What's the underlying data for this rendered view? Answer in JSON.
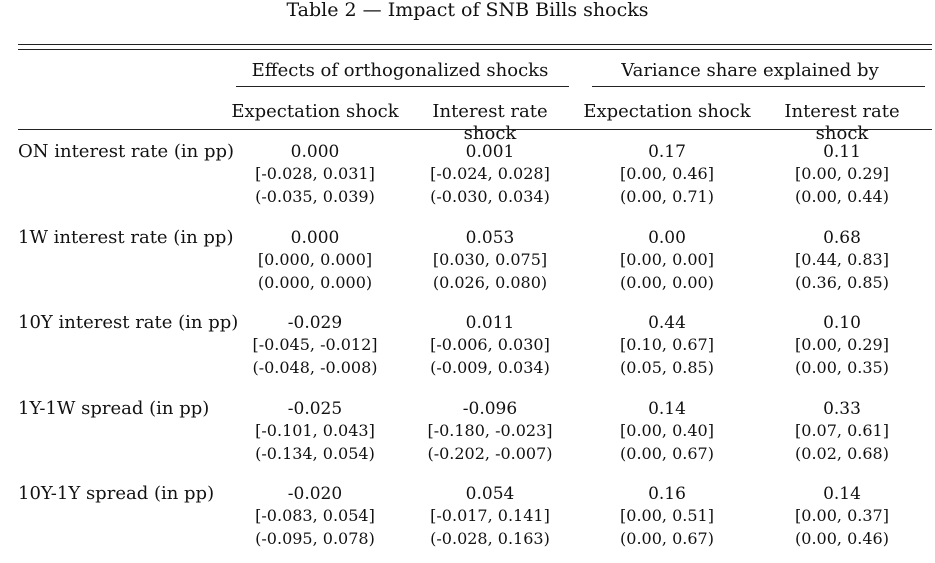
{
  "caption": "Table  2 — Impact of SNB Bills shocks",
  "group_headers": [
    "Effects of orthogonalized shocks",
    "Variance share explained by"
  ],
  "sub_headers": [
    "Expectation shock",
    "Interest rate shock",
    "Expectation shock",
    "Interest rate shock"
  ],
  "rows": [
    {
      "label": "ON interest rate (in pp)",
      "cells": [
        {
          "point": "0.000",
          "ci1": "[-0.028, 0.031]",
          "ci2": "(-0.035, 0.039)"
        },
        {
          "point": "0.001",
          "ci1": "[-0.024, 0.028]",
          "ci2": "(-0.030, 0.034)"
        },
        {
          "point": "0.17",
          "ci1": "[0.00, 0.46]",
          "ci2": "(0.00, 0.71)"
        },
        {
          "point": "0.11",
          "ci1": "[0.00, 0.29]",
          "ci2": "(0.00, 0.44)"
        }
      ]
    },
    {
      "label": "1W interest rate (in pp)",
      "cells": [
        {
          "point": "0.000",
          "ci1": "[0.000, 0.000]",
          "ci2": "(0.000, 0.000)"
        },
        {
          "point": "0.053",
          "ci1": "[0.030, 0.075]",
          "ci2": "(0.026, 0.080)"
        },
        {
          "point": "0.00",
          "ci1": "[0.00, 0.00]",
          "ci2": "(0.00, 0.00)"
        },
        {
          "point": "0.68",
          "ci1": "[0.44, 0.83]",
          "ci2": "(0.36, 0.85)"
        }
      ]
    },
    {
      "label": "10Y interest rate (in pp)",
      "cells": [
        {
          "point": "-0.029",
          "ci1": "[-0.045, -0.012]",
          "ci2": "(-0.048, -0.008)"
        },
        {
          "point": "0.011",
          "ci1": "[-0.006, 0.030]",
          "ci2": "(-0.009, 0.034)"
        },
        {
          "point": "0.44",
          "ci1": "[0.10, 0.67]",
          "ci2": "(0.05, 0.85)"
        },
        {
          "point": "0.10",
          "ci1": "[0.00, 0.29]",
          "ci2": "(0.00, 0.35)"
        }
      ]
    },
    {
      "label": "1Y-1W spread (in pp)",
      "cells": [
        {
          "point": "-0.025",
          "ci1": "[-0.101, 0.043]",
          "ci2": "(-0.134, 0.054)"
        },
        {
          "point": "-0.096",
          "ci1": "[-0.180, -0.023]",
          "ci2": "(-0.202, -0.007)"
        },
        {
          "point": "0.14",
          "ci1": "[0.00, 0.40]",
          "ci2": "(0.00, 0.67)"
        },
        {
          "point": "0.33",
          "ci1": "[0.07, 0.61]",
          "ci2": "(0.02, 0.68)"
        }
      ]
    },
    {
      "label": "10Y-1Y spread (in pp)",
      "cells": [
        {
          "point": "-0.020",
          "ci1": "[-0.083, 0.054]",
          "ci2": "(-0.095, 0.078)"
        },
        {
          "point": "0.054",
          "ci1": "[-0.017, 0.141]",
          "ci2": "(-0.028, 0.163)"
        },
        {
          "point": "0.16",
          "ci1": "[0.00, 0.51]",
          "ci2": "(0.00, 0.67)"
        },
        {
          "point": "0.14",
          "ci1": "[0.00, 0.37]",
          "ci2": "(0.00, 0.46)"
        }
      ]
    }
  ]
}
